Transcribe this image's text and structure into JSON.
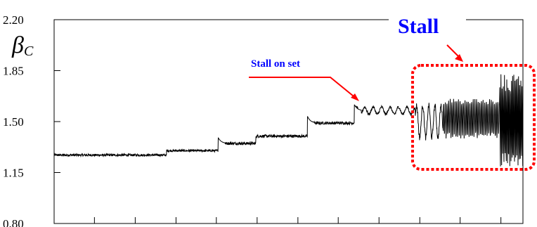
{
  "chart_data": {
    "type": "line",
    "title": "",
    "xlabel": "",
    "ylabel": {
      "symbol": "β",
      "subscript": "C"
    },
    "ylim": [
      0.8,
      2.2
    ],
    "yticks": [
      "2.20",
      "1.85",
      "1.50",
      "1.15",
      "0.80"
    ],
    "ytick_values": [
      2.2,
      1.85,
      1.5,
      1.15,
      0.8
    ],
    "xlim": [
      0,
      100
    ],
    "xtick_positions": [
      0,
      8.6,
      17.3,
      26,
      34.6,
      43.3,
      52,
      60.6,
      69.3,
      78,
      86.6,
      95.3
    ],
    "grid": false,
    "series": [
      {
        "color": "#000000",
        "segments": [
          {
            "x0": 0,
            "x1": 24,
            "level": 1.27,
            "noise": 0.008,
            "osc_amp": 0,
            "osc_period": 1
          },
          {
            "x0": 24,
            "x1": 35,
            "level": 1.3,
            "noise": 0.008,
            "osc_amp": 0,
            "osc_period": 1
          },
          {
            "x0": 35,
            "x1": 43,
            "level": 1.35,
            "noise": 0.01,
            "osc_amp": 0,
            "osc_period": 1
          },
          {
            "x0": 43,
            "x1": 54,
            "level": 1.4,
            "noise": 0.01,
            "osc_amp": 0,
            "osc_period": 1
          },
          {
            "x0": 54,
            "x1": 64,
            "level": 1.49,
            "noise": 0.01,
            "osc_amp": 0,
            "osc_period": 1
          },
          {
            "x0": 64,
            "x1": 77,
            "level": 1.575,
            "noise": 0.01,
            "osc_amp": 0.025,
            "osc_period": 1.8
          },
          {
            "x0": 77,
            "x1": 83,
            "level": 1.5,
            "noise": 0.02,
            "osc_amp": 0.11,
            "osc_period": 1.3
          },
          {
            "x0": 83,
            "x1": 95,
            "level": 1.52,
            "noise": 0.02,
            "osc_amp": 0.12,
            "osc_period": 0.35
          },
          {
            "x0": 95,
            "x1": 100,
            "level": 1.5,
            "noise": 0.06,
            "osc_amp": 0.28,
            "osc_period": 0.25
          }
        ],
        "steps": [
          {
            "x": 35,
            "peak": 1.39
          },
          {
            "x": 54,
            "peak": 1.54
          },
          {
            "x": 64,
            "peak": 1.62
          }
        ]
      }
    ],
    "annotations": [
      {
        "id": "stall-onset",
        "text": "Stall on set",
        "color": "#0000ff",
        "arrow_color": "#ff0000",
        "x": 64.5,
        "y": 1.6
      },
      {
        "id": "stall",
        "text": "Stall",
        "color": "#0000ff",
        "arrow_color": "#ff0000",
        "box_color": "#ff0000",
        "box_xlim": [
          77,
          100
        ],
        "box_ylim": [
          1.18,
          1.77
        ]
      }
    ]
  }
}
